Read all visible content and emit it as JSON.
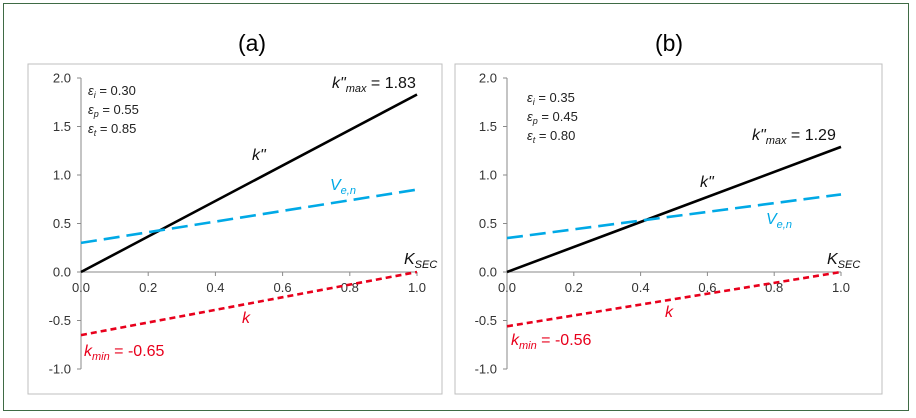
{
  "chart_data": [
    {
      "panel_title": "(a)",
      "type": "line",
      "xlabel": "K",
      "xlabel_sub": "SEC",
      "xlim": [
        0,
        1.0
      ],
      "ylim": [
        -1.0,
        2.0
      ],
      "x_ticks": [
        "0.0",
        "0.2",
        "0.4",
        "0.6",
        "0.8",
        "1.0"
      ],
      "y_ticks": [
        "2.0",
        "1.5",
        "1.0",
        "0.5",
        "0.0",
        "-0.5",
        "-1.0"
      ],
      "params": [
        {
          "sym": "ε",
          "sub": "i",
          "value": " = 0.30"
        },
        {
          "sym": "ε",
          "sub": "p",
          "value": " = 0.55"
        },
        {
          "sym": "ε",
          "sub": "t",
          "value": " = 0.85"
        }
      ],
      "series": [
        {
          "name": "k\"",
          "style": "solid",
          "color": "#000000",
          "x": [
            0,
            1.0
          ],
          "y": [
            0,
            1.83
          ]
        },
        {
          "name": "V_e,n",
          "style": "dashed",
          "color": "#00a9e6",
          "x": [
            0,
            1.0
          ],
          "y": [
            0.3,
            0.85
          ]
        },
        {
          "name": "k",
          "style": "dotted",
          "color": "#e8001c",
          "x": [
            0,
            1.0
          ],
          "y": [
            -0.65,
            0
          ]
        }
      ],
      "labels": {
        "kpp": "k\"",
        "ven_main": "V",
        "ven_sub": "e,n",
        "k": "k",
        "kmax_main": "k\"",
        "kmax_sub": "max",
        "kmax_value": " = 1.83",
        "kmin_main": "k",
        "kmin_sub": "min",
        "kmin_value": " = -0.65"
      }
    },
    {
      "panel_title": "(b)",
      "type": "line",
      "xlabel": "K",
      "xlabel_sub": "SEC",
      "xlim": [
        0,
        1.0
      ],
      "ylim": [
        -1.0,
        2.0
      ],
      "x_ticks": [
        "0.0",
        "0.2",
        "0.4",
        "0.6",
        "0.8",
        "1.0"
      ],
      "y_ticks": [
        "2.0",
        "1.5",
        "1.0",
        "0.5",
        "0.0",
        "-0.5",
        "-1.0"
      ],
      "params": [
        {
          "sym": "ε",
          "sub": "i",
          "value": " = 0.35"
        },
        {
          "sym": "ε",
          "sub": "p",
          "value": " = 0.45"
        },
        {
          "sym": "ε",
          "sub": "t",
          "value": " = 0.80"
        }
      ],
      "series": [
        {
          "name": "k\"",
          "style": "solid",
          "color": "#000000",
          "x": [
            0,
            1.0
          ],
          "y": [
            0,
            1.29
          ]
        },
        {
          "name": "V_e,n",
          "style": "dashed",
          "color": "#00a9e6",
          "x": [
            0,
            1.0
          ],
          "y": [
            0.35,
            0.8
          ]
        },
        {
          "name": "k",
          "style": "dotted",
          "color": "#e8001c",
          "x": [
            0,
            1.0
          ],
          "y": [
            -0.56,
            0
          ]
        }
      ],
      "labels": {
        "kpp": "k\"",
        "ven_main": "V",
        "ven_sub": "e,n",
        "k": "k",
        "kmax_main": "k\"",
        "kmax_sub": "max",
        "kmax_value": " = 1.29",
        "kmin_main": "k",
        "kmin_sub": "min",
        "kmin_value": " = -0.56"
      }
    }
  ]
}
